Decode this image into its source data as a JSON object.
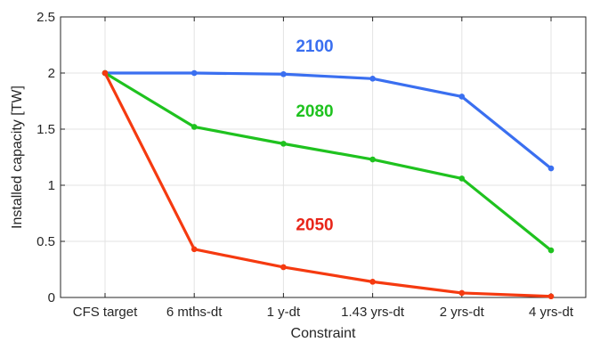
{
  "chart_data": {
    "type": "line",
    "categories": [
      "CFS target",
      "6 mths-dt",
      "1 y-dt",
      "1.43 yrs-dt",
      "2 yrs-dt",
      "4 yrs-dt"
    ],
    "xlabel": "Constraint",
    "ylabel": "Installed capacity [TW]",
    "ylim": [
      0,
      2.5
    ],
    "yticks": [
      "0",
      "0.5",
      "1",
      "1.5",
      "2",
      "2.5"
    ],
    "grid": true,
    "legend": "none",
    "series": [
      {
        "name": "2100",
        "color": "#3a6ff0",
        "values": [
          2.0,
          2.0,
          1.99,
          1.95,
          1.79,
          1.15
        ]
      },
      {
        "name": "2080",
        "color": "#1fc21f",
        "values": [
          2.0,
          1.52,
          1.37,
          1.23,
          1.06,
          0.42
        ]
      },
      {
        "name": "2050",
        "color": "#f53a10",
        "values": [
          2.0,
          0.43,
          0.27,
          0.14,
          0.04,
          0.01
        ]
      }
    ],
    "annotations": [
      {
        "text": "2100",
        "color": "#3a6ff0",
        "cat_pos": 2.35,
        "y": 2.19
      },
      {
        "text": "2080",
        "color": "#1fc21f",
        "cat_pos": 2.35,
        "y": 1.61
      },
      {
        "text": "2050",
        "color": "#e8261a",
        "cat_pos": 2.35,
        "y": 0.6
      }
    ]
  }
}
